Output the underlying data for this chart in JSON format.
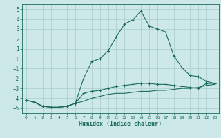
{
  "xlabel": "Humidex (Indice chaleur)",
  "bg_color": "#cde8e8",
  "grid_color": "#aacccc",
  "line_color": "#1a6b5a",
  "xlim": [
    -0.5,
    23.5
  ],
  "ylim": [
    -5.5,
    5.5
  ],
  "xticks": [
    0,
    1,
    2,
    3,
    4,
    5,
    6,
    7,
    8,
    9,
    10,
    11,
    12,
    13,
    14,
    15,
    16,
    17,
    18,
    19,
    20,
    21,
    22,
    23
  ],
  "yticks": [
    -5,
    -4,
    -3,
    -2,
    -1,
    0,
    1,
    2,
    3,
    4,
    5
  ],
  "series1_x": [
    0,
    1,
    2,
    3,
    4,
    5,
    6,
    7,
    8,
    9,
    10,
    11,
    12,
    13,
    14,
    15,
    16,
    17,
    18,
    19,
    20,
    21,
    22,
    23
  ],
  "series1_y": [
    -4.2,
    -4.4,
    -4.8,
    -4.9,
    -4.9,
    -4.8,
    -4.5,
    -2.0,
    -0.3,
    0.0,
    0.8,
    2.2,
    3.5,
    3.9,
    4.8,
    3.3,
    3.0,
    2.7,
    0.3,
    -0.9,
    -1.7,
    -1.8,
    -2.3,
    -2.5
  ],
  "series2_x": [
    0,
    1,
    2,
    3,
    4,
    5,
    6,
    7,
    8,
    9,
    10,
    11,
    12,
    13,
    14,
    15,
    16,
    17,
    18,
    19,
    20,
    21,
    22,
    23
  ],
  "series2_y": [
    -4.2,
    -4.4,
    -4.8,
    -4.9,
    -4.9,
    -4.8,
    -4.5,
    -3.5,
    -3.3,
    -3.2,
    -3.0,
    -2.8,
    -2.7,
    -2.6,
    -2.5,
    -2.5,
    -2.6,
    -2.6,
    -2.7,
    -2.8,
    -2.9,
    -3.0,
    -2.5,
    -2.5
  ],
  "series3_x": [
    0,
    1,
    2,
    3,
    4,
    5,
    6,
    7,
    8,
    9,
    10,
    11,
    12,
    13,
    14,
    15,
    16,
    17,
    18,
    19,
    20,
    21,
    22,
    23
  ],
  "series3_y": [
    -4.2,
    -4.4,
    -4.8,
    -4.9,
    -4.9,
    -4.8,
    -4.5,
    -4.3,
    -4.0,
    -3.8,
    -3.6,
    -3.5,
    -3.5,
    -3.4,
    -3.3,
    -3.3,
    -3.2,
    -3.2,
    -3.1,
    -3.0,
    -3.0,
    -2.9,
    -2.7,
    -2.6
  ]
}
